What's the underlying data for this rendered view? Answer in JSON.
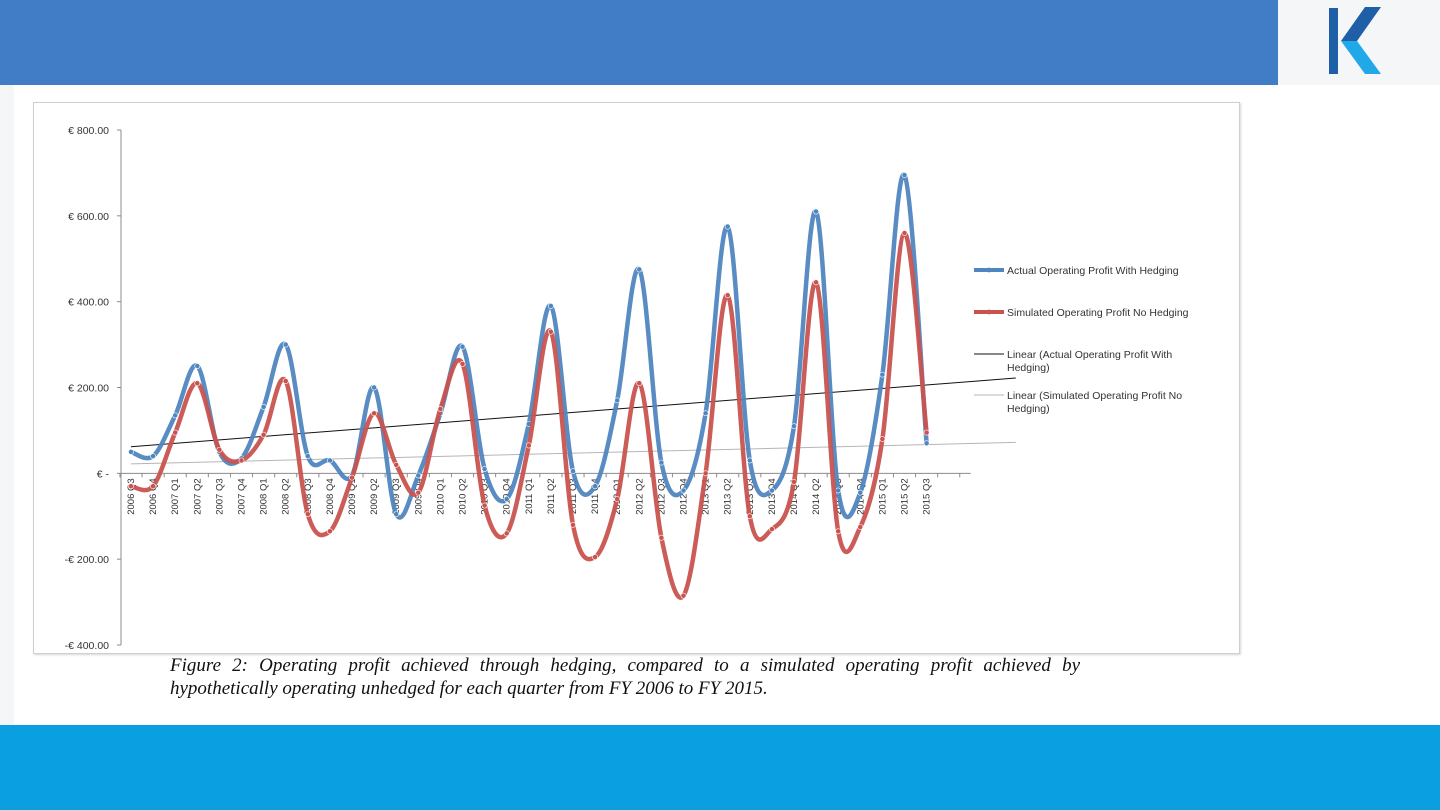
{
  "colors": {
    "header": "#417cc6",
    "footer": "#0a9fe0",
    "logo_dark": "#1f5fa8",
    "logo_light": "#21a8e8",
    "series_actual": "#4f86c0",
    "series_simulated": "#c9534f",
    "trend_actual": "#111111",
    "trend_simulated": "#b5b5b5"
  },
  "logo": {
    "icon": "k-chevron-logo-icon"
  },
  "caption": "Figure 2: Operating profit achieved through hedging, compared to a simulated operating profit achieved by hypothetically operating unhedged for each quarter from FY 2006 to FY 2015.",
  "chart_data": {
    "type": "line",
    "title": "",
    "xlabel": "",
    "ylabel": "",
    "ylim": [
      -400,
      800
    ],
    "yticks": [
      800,
      600,
      400,
      200,
      0,
      -200,
      -400
    ],
    "ytick_labels": [
      "€ 800.00",
      "€ 600.00",
      "€ 400.00",
      "€ 200.00",
      "€ -",
      "-€ 200.00",
      "-€ 400.00"
    ],
    "grid": false,
    "legend_position": "right",
    "categories": [
      "2006 Q3",
      "2006 Q4",
      "2007 Q1",
      "2007 Q2",
      "2007 Q3",
      "2007 Q4",
      "2008 Q1",
      "2008 Q2",
      "2008 Q3",
      "2008 Q4",
      "2009 Q1",
      "2009 Q2",
      "2009 Q3",
      "2009 Q4",
      "2010 Q1",
      "2010 Q2",
      "2010 Q3",
      "2010 Q4",
      "2011 Q1",
      "2011 Q2",
      "2011 Q3",
      "2011 Q4",
      "2012 Q1",
      "2012 Q2",
      "2012 Q3",
      "2012 Q4",
      "2013 Q1",
      "2013 Q2",
      "2013 Q3",
      "2013 Q4",
      "2014 Q1",
      "2014 Q2",
      "2014 Q3",
      "2014 Q4",
      "2015 Q1",
      "2015 Q2",
      "2015 Q3"
    ],
    "series": [
      {
        "name": "Actual Operating Profit With Hedging",
        "values": [
          50,
          40,
          135,
          250,
          50,
          35,
          155,
          300,
          40,
          30,
          -5,
          200,
          -95,
          -5,
          140,
          295,
          10,
          -60,
          115,
          390,
          5,
          -30,
          170,
          475,
          25,
          -40,
          140,
          575,
          30,
          -40,
          110,
          610,
          -40,
          -45,
          230,
          695,
          70
        ]
      },
      {
        "name": "Simulated Operating Profit No Hedging",
        "values": [
          -30,
          -30,
          95,
          210,
          55,
          30,
          90,
          215,
          -95,
          -135,
          -10,
          140,
          20,
          -45,
          150,
          255,
          -75,
          -140,
          65,
          330,
          -120,
          -195,
          -60,
          210,
          -150,
          -285,
          0,
          415,
          -100,
          -130,
          -20,
          445,
          -135,
          -125,
          80,
          560,
          95
        ]
      }
    ],
    "trendlines": [
      {
        "name": "Linear (Actual Operating Profit With Hedging)",
        "start": 62,
        "end": 222
      },
      {
        "name": "Linear (Simulated Operating Profit No Hedging)",
        "start": 22,
        "end": 72
      }
    ]
  }
}
